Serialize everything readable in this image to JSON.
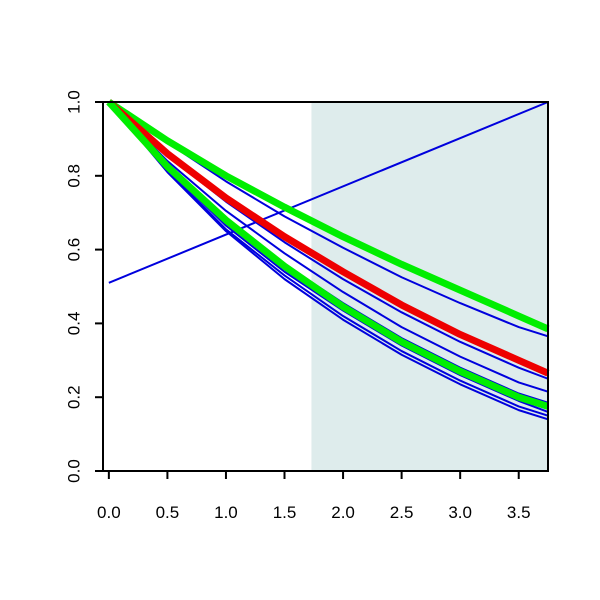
{
  "chart_data": {
    "type": "line",
    "title": "",
    "xlabel": "",
    "ylabel": "",
    "xlim": [
      -0.05,
      3.75
    ],
    "ylim": [
      0.0,
      1.0
    ],
    "x_ticks": [
      0.0,
      0.5,
      1.0,
      1.5,
      2.0,
      2.5,
      3.0,
      3.5
    ],
    "x_tick_labels": [
      "0.0",
      "0.5",
      "1.0",
      "1.5",
      "2.0",
      "2.5",
      "3.0",
      "3.5"
    ],
    "y_ticks": [
      0.0,
      0.2,
      0.4,
      0.6,
      0.8,
      1.0
    ],
    "y_tick_labels": [
      "0.0",
      "0.2",
      "0.4",
      "0.6",
      "0.8",
      "1.0"
    ],
    "grid": false,
    "legend": "none",
    "shaded_region": {
      "x_start": 1.73,
      "x_end": 3.75,
      "color": "#deecec"
    },
    "series": [
      {
        "color": "#0000dd",
        "width": 2,
        "x": [
          0.0,
          3.75
        ],
        "y": [
          0.51,
          1.0
        ]
      },
      {
        "color": "#0000dd",
        "width": 2,
        "x": [
          0.0,
          0.5,
          1.0,
          1.5,
          2.0,
          2.5,
          3.0,
          3.5,
          3.75
        ],
        "y": [
          1.0,
          0.89,
          0.785,
          0.69,
          0.605,
          0.525,
          0.455,
          0.39,
          0.365
        ]
      },
      {
        "color": "#0000dd",
        "width": 2,
        "x": [
          0.0,
          0.5,
          1.0,
          1.5,
          2.0,
          2.5,
          3.0,
          3.5,
          3.75
        ],
        "y": [
          1.0,
          0.855,
          0.73,
          0.62,
          0.52,
          0.43,
          0.35,
          0.28,
          0.25
        ]
      },
      {
        "color": "#0000dd",
        "width": 2,
        "x": [
          0.0,
          0.5,
          1.0,
          1.5,
          2.0,
          2.5,
          3.0,
          3.5,
          3.75
        ],
        "y": [
          1.0,
          0.84,
          0.705,
          0.59,
          0.485,
          0.39,
          0.31,
          0.24,
          0.215
        ]
      },
      {
        "color": "#0000dd",
        "width": 2,
        "x": [
          0.0,
          0.5,
          1.0,
          1.5,
          2.0,
          2.5,
          3.0,
          3.5,
          3.75
        ],
        "y": [
          1.0,
          0.83,
          0.685,
          0.56,
          0.455,
          0.36,
          0.28,
          0.21,
          0.185
        ]
      },
      {
        "color": "#0000dd",
        "width": 2,
        "x": [
          0.0,
          0.5,
          1.0,
          1.5,
          2.0,
          2.5,
          3.0,
          3.5,
          3.75
        ],
        "y": [
          1.0,
          0.82,
          0.665,
          0.54,
          0.435,
          0.34,
          0.26,
          0.19,
          0.16
        ]
      },
      {
        "color": "#0000dd",
        "width": 2,
        "x": [
          0.0,
          0.5,
          1.0,
          1.5,
          2.0,
          2.5,
          3.0,
          3.5,
          3.75
        ],
        "y": [
          1.0,
          0.815,
          0.655,
          0.53,
          0.42,
          0.325,
          0.245,
          0.175,
          0.15
        ]
      },
      {
        "color": "#0000dd",
        "width": 2,
        "x": [
          0.0,
          0.5,
          1.0,
          1.5,
          2.0,
          2.5,
          3.0,
          3.5,
          3.75
        ],
        "y": [
          1.0,
          0.81,
          0.65,
          0.52,
          0.41,
          0.315,
          0.235,
          0.165,
          0.14
        ]
      },
      {
        "color": "#00ee00",
        "width": 7,
        "x": [
          0.0,
          0.5,
          1.0,
          1.5,
          2.0,
          2.5,
          3.0,
          3.5,
          3.75
        ],
        "y": [
          1.0,
          0.895,
          0.8,
          0.715,
          0.635,
          0.56,
          0.49,
          0.42,
          0.385
        ]
      },
      {
        "color": "#ee0000",
        "width": 7,
        "x": [
          0.0,
          0.5,
          1.0,
          1.5,
          2.0,
          2.5,
          3.0,
          3.5,
          3.75
        ],
        "y": [
          1.0,
          0.86,
          0.74,
          0.635,
          0.54,
          0.45,
          0.37,
          0.3,
          0.265
        ]
      },
      {
        "color": "#00ee00",
        "width": 7,
        "x": [
          0.0,
          0.5,
          1.0,
          1.5,
          2.0,
          2.5,
          3.0,
          3.5,
          3.75
        ],
        "y": [
          1.0,
          0.825,
          0.68,
          0.555,
          0.445,
          0.35,
          0.27,
          0.2,
          0.175
        ]
      }
    ]
  }
}
